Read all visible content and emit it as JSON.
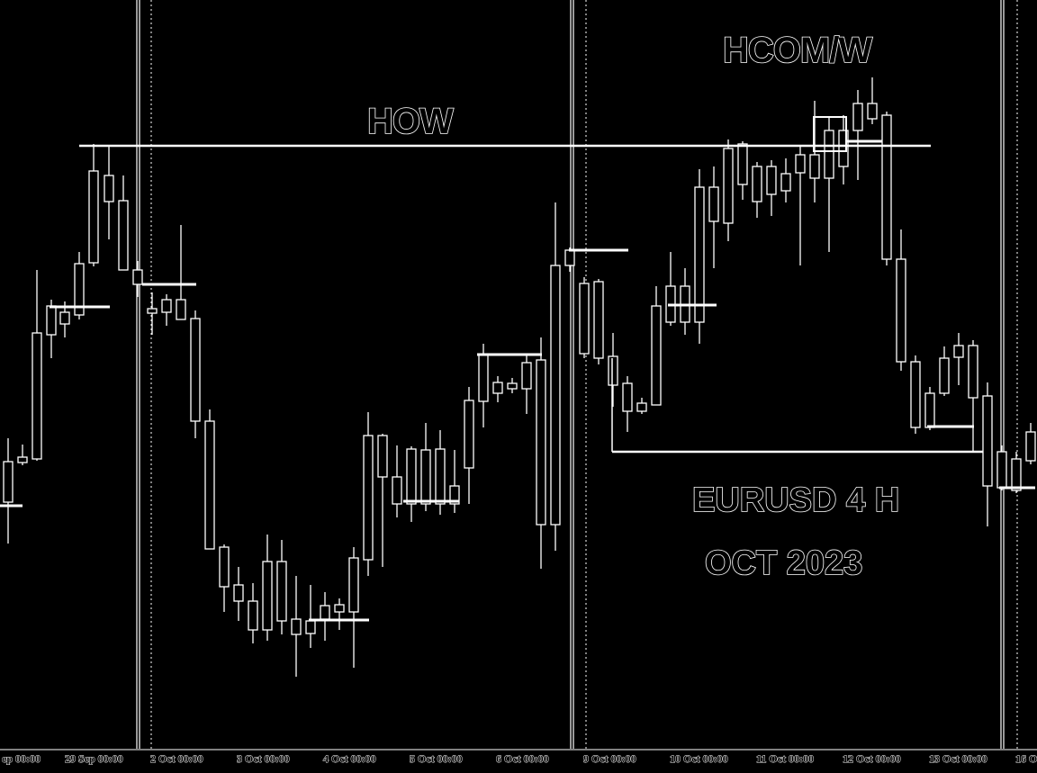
{
  "chart_data": {
    "type": "candlestick",
    "annotations": {
      "how": "HOW",
      "hcom": "HCOM/W",
      "symbol": "EURUSD 4 H",
      "period": "OCT 2023"
    },
    "x_ticks": [
      "ep 00:00",
      "29 Sep 00:00",
      "2 Oct 00:00",
      "3 Oct 00:00",
      "4 Oct 00:00",
      "5 Oct 00:00",
      "6 Oct 00:00",
      "9 Oct 00:00",
      "10 Oct 00:00",
      "11 Oct 00:00",
      "12 Oct 00:00",
      "13 Oct 00:00",
      "16 O"
    ],
    "grid": false,
    "colors": {
      "background": "#000000",
      "foreground": "#ffffff"
    }
  }
}
